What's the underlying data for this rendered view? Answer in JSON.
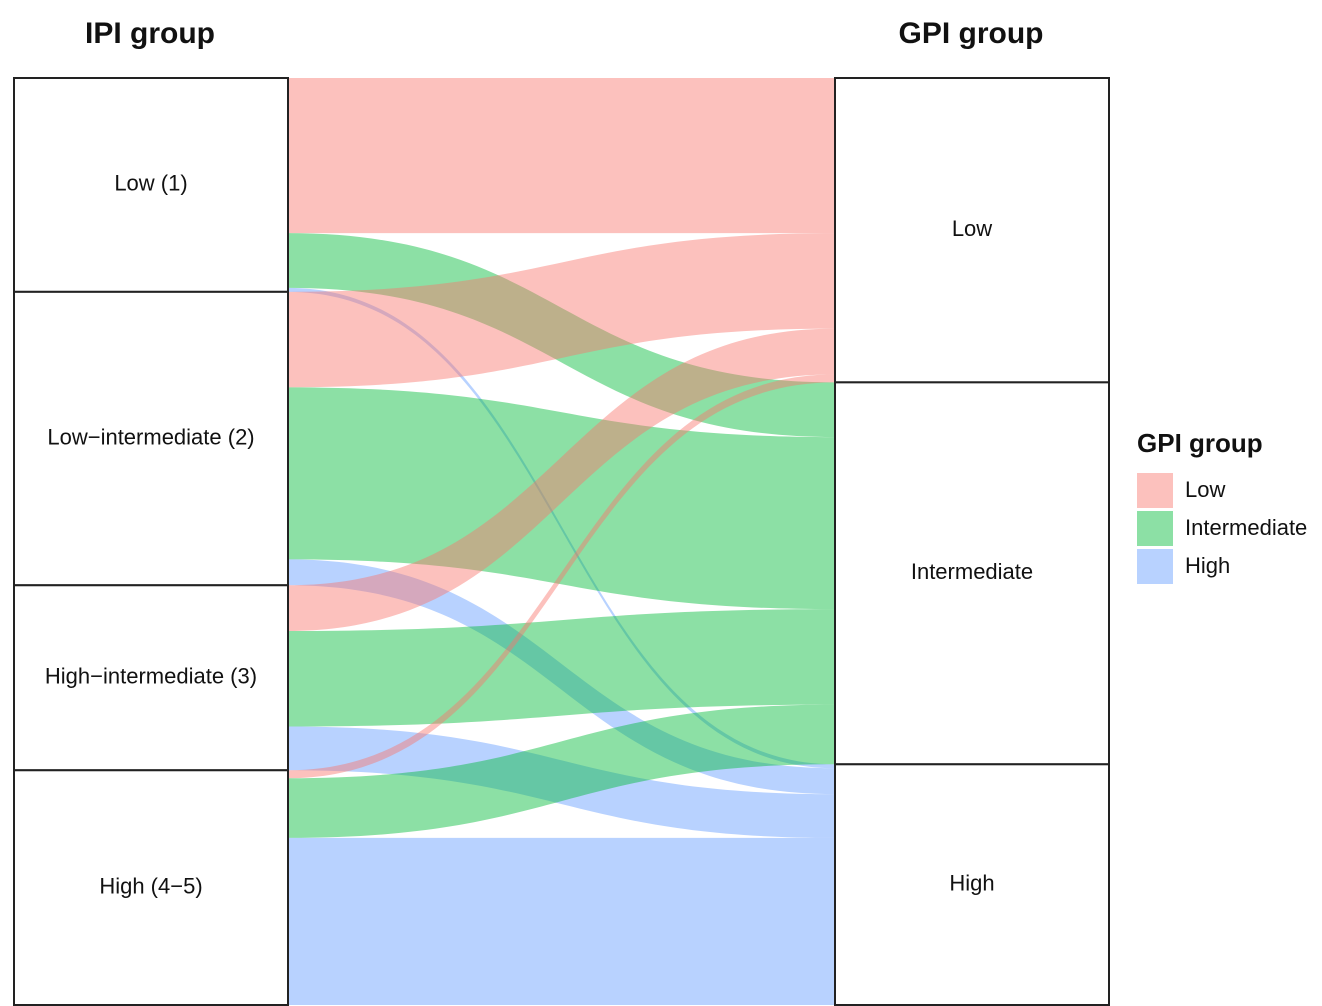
{
  "chart_data": {
    "type": "alluvial",
    "left_title": "IPI group",
    "right_title": "GPI group",
    "left": [
      "Low (1)",
      "Low−intermediate (2)",
      "High−intermediate (3)",
      "High (4−5)"
    ],
    "right": [
      "Low",
      "Intermediate",
      "High"
    ],
    "flows": [
      {
        "from": 0,
        "to": 0,
        "value": 156
      },
      {
        "from": 0,
        "to": 1,
        "value": 55
      },
      {
        "from": 0,
        "to": 2,
        "value": 4
      },
      {
        "from": 1,
        "to": 0,
        "value": 96
      },
      {
        "from": 1,
        "to": 1,
        "value": 173
      },
      {
        "from": 1,
        "to": 2,
        "value": 26
      },
      {
        "from": 2,
        "to": 0,
        "value": 46
      },
      {
        "from": 2,
        "to": 1,
        "value": 96
      },
      {
        "from": 2,
        "to": 2,
        "value": 44
      },
      {
        "from": 3,
        "to": 0,
        "value": 8
      },
      {
        "from": 3,
        "to": 1,
        "value": 60
      },
      {
        "from": 3,
        "to": 2,
        "value": 168
      }
    ],
    "legend": {
      "title": "GPI group",
      "items": [
        {
          "name": "Low",
          "color": "#F8766D"
        },
        {
          "name": "Intermediate",
          "color": "#00BA38"
        },
        {
          "name": "High",
          "color": "#619CFF"
        }
      ]
    }
  }
}
